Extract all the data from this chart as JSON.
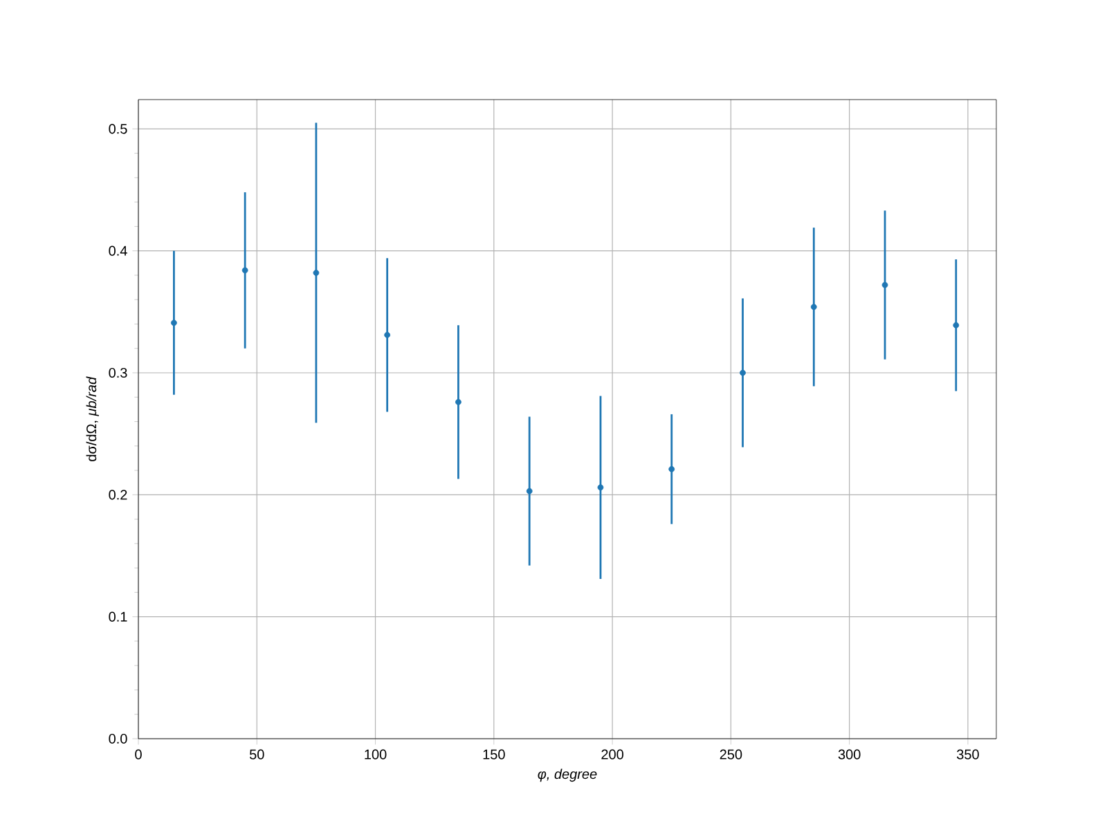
{
  "chart_data": {
    "type": "scatter",
    "xlabel": "φ, degree",
    "ylabel": "dσ/dΩ, *μb/rad*",
    "x": [
      15,
      45,
      75,
      105,
      135,
      165,
      195,
      225,
      255,
      285,
      315,
      345
    ],
    "values": [
      0.341,
      0.384,
      0.382,
      0.331,
      0.276,
      0.203,
      0.206,
      0.221,
      0.3,
      0.354,
      0.372,
      0.339
    ],
    "errors": [
      0.059,
      0.064,
      0.123,
      0.063,
      0.063,
      0.061,
      0.075,
      0.045,
      0.061,
      0.065,
      0.061,
      0.054
    ],
    "color": "#1f77b4",
    "marker": "circle",
    "grid": true,
    "xlim": [
      0,
      362
    ],
    "ylim": [
      0,
      0.524
    ],
    "xticks": [
      0,
      50,
      100,
      150,
      200,
      250,
      300,
      350
    ],
    "yticks": [
      {
        "value": 0,
        "label": "0.0"
      },
      0.1,
      0.2,
      0.3,
      0.4,
      0.5
    ]
  }
}
